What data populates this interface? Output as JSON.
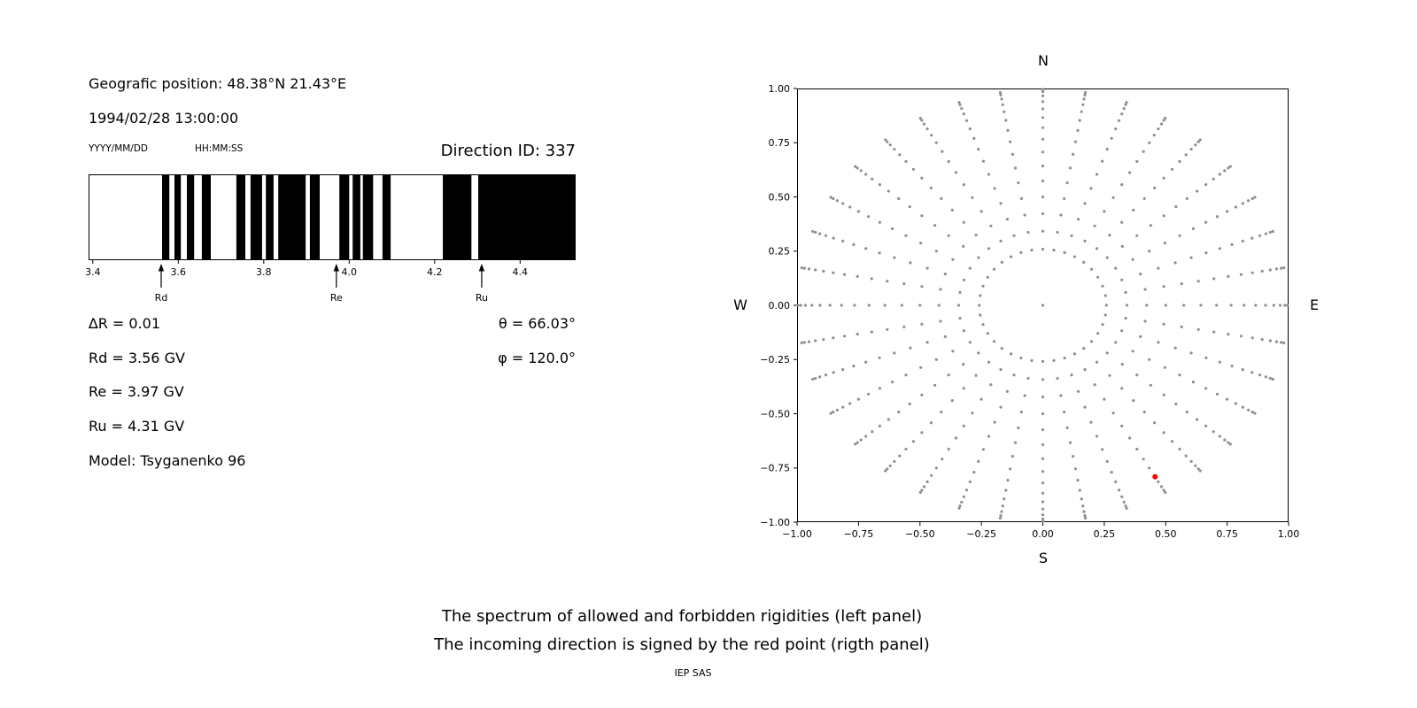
{
  "left_panel": {
    "position_line": "Geografic position: 48.38°N 21.43°E",
    "datetime_line": "1994/02/28 13:00:00",
    "date_format_label": "YYYY/MM/DD",
    "time_format_label": "HH:MM:SS",
    "direction_id": "Direction ID: 337",
    "delta_r": "∆R = 0.01",
    "rd": "Rd = 3.56 GV",
    "re": "Re = 3.97 GV",
    "ru": "Ru = 4.31 GV",
    "model": "Model: Tsyganenko 96",
    "theta": "θ = 66.03°",
    "phi": "φ = 120.0°"
  },
  "right_panel": {
    "compass": {
      "north": "N",
      "south": "S",
      "west": "W",
      "east": "E"
    }
  },
  "captions": {
    "line1": "The spectrum of allowed and forbidden rigidities (left panel)",
    "line2": "The incoming direction is signed by the red point (rigth panel)",
    "credit": "IEP SAS"
  },
  "chart_data": [
    {
      "type": "barcode",
      "title": "Spectrum of allowed (white) and forbidden (black) rigidities, GV",
      "xlim": [
        3.39,
        4.53
      ],
      "xticks": [
        3.4,
        3.6,
        3.8,
        4.0,
        4.2,
        4.4
      ],
      "xtick_labels": [
        "3.4",
        "3.6",
        "3.8",
        "4.0",
        "4.2",
        "4.4"
      ],
      "black_bands": [
        [
          3.562,
          3.579
        ],
        [
          3.591,
          3.606
        ],
        [
          3.62,
          3.637
        ],
        [
          3.655,
          3.676
        ],
        [
          3.736,
          3.757
        ],
        [
          3.769,
          3.796
        ],
        [
          3.805,
          3.823
        ],
        [
          3.834,
          3.898
        ],
        [
          3.908,
          3.931
        ],
        [
          3.977,
          4.0
        ],
        [
          4.008,
          4.026
        ],
        [
          4.032,
          4.056
        ],
        [
          4.078,
          4.097
        ],
        [
          4.219,
          4.286
        ],
        [
          4.302,
          4.53
        ]
      ],
      "markers": [
        {
          "label": "Rd",
          "x": 3.56
        },
        {
          "label": "Re",
          "x": 3.97
        },
        {
          "label": "Ru",
          "x": 4.31
        }
      ],
      "band_color": "#000000"
    },
    {
      "type": "scatter",
      "title": "Incoming directions map (N up, E right); red point = selected direction",
      "xlim": [
        -1.0,
        1.0
      ],
      "ylim": [
        -1.0,
        1.0
      ],
      "xticks": [
        -1.0,
        -0.75,
        -0.5,
        -0.25,
        0.0,
        0.25,
        0.5,
        0.75,
        1.0
      ],
      "xtick_labels": [
        "−1.00",
        "−0.75",
        "−0.50",
        "−0.25",
        "0.00",
        "0.25",
        "0.50",
        "0.75",
        "1.00"
      ],
      "yticks": [
        -1.0,
        -0.75,
        -0.5,
        -0.25,
        0.0,
        0.25,
        0.5,
        0.75,
        1.0
      ],
      "ytick_labels": [
        "−1.00",
        "−0.75",
        "−0.50",
        "−0.25",
        "0.00",
        "0.25",
        "0.50",
        "0.75",
        "1.00"
      ],
      "gray_points": {
        "generator": "x = sin(zenith)*sin(azimuth), y = sin(zenith)*cos(azimuth)",
        "azimuth_start_deg": 0,
        "azimuth_step_deg": 10,
        "azimuth_count": 36,
        "zenith_deg": [
          15,
          20,
          25,
          30,
          35,
          40,
          45,
          50,
          55,
          60,
          65,
          70,
          75,
          80,
          85
        ],
        "include_center_point": true,
        "color": "#8f8f8f",
        "marker_radius_px": 1.6
      },
      "red_point": {
        "x": 0.457,
        "y": -0.791,
        "color": "#ff0000",
        "radius_px": 3
      }
    }
  ]
}
